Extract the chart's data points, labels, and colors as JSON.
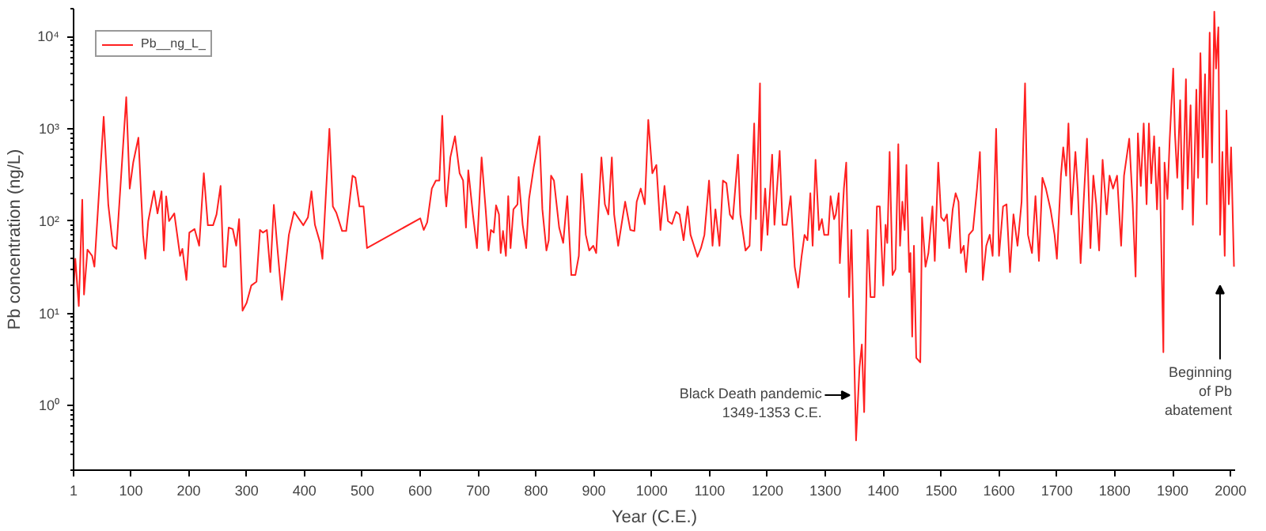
{
  "chart_data": {
    "type": "line",
    "xlabel": "Year (C.E.)",
    "ylabel": "Pb concentration (ng/L)",
    "log": "y",
    "grid": false,
    "legend": "top left",
    "marker": "none",
    "line_style": "solid",
    "xlim": [
      1,
      2008
    ],
    "xticks": [
      1,
      100,
      200,
      300,
      400,
      500,
      600,
      700,
      800,
      900,
      1000,
      1100,
      1200,
      1300,
      1400,
      1500,
      1600,
      1700,
      1800,
      1900,
      2000
    ],
    "ylim": [
      0.2,
      20000
    ],
    "yticks": [
      {
        "value": 1,
        "label": "10⁰"
      },
      {
        "value": 10,
        "label": "10¹"
      },
      {
        "value": 100,
        "label": "10²"
      },
      {
        "value": 1000,
        "label": "10³"
      },
      {
        "value": 10000,
        "label": "10⁴"
      }
    ],
    "annotations": [
      {
        "text": "Black Death pandemic\n1349-1353 C.E.",
        "x": 1344,
        "y": 1.3
      },
      "Beginning\nof Pb\nabatement"
    ],
    "series": [
      {
        "name": "Pb__ng_L_",
        "color": "#ff2020",
        "x": [
          1,
          4,
          10,
          16,
          19,
          25,
          33,
          37,
          53,
          61,
          69,
          75,
          92,
          98,
          104,
          113,
          121,
          125,
          130,
          140,
          146,
          153,
          157,
          161,
          166,
          175,
          185,
          189,
          196,
          201,
          210,
          218,
          226,
          233,
          242,
          248,
          255,
          260,
          264,
          269,
          276,
          282,
          287,
          293,
          300,
          308,
          317,
          323,
          328,
          335,
          341,
          347,
          352,
          361,
          373,
          382,
          398,
          406,
          412,
          418,
          427,
          431,
          443,
          449,
          455,
          465,
          472,
          483,
          488,
          495,
          502,
          508,
          600,
          606,
          612,
          620,
          627,
          633,
          638,
          643,
          645,
          652,
          660,
          668,
          674,
          679,
          683,
          691,
          698,
          706,
          713,
          718,
          722,
          727,
          731,
          736,
          739,
          743,
          748,
          752,
          756,
          761,
          768,
          770,
          777,
          783,
          788,
          796,
          806,
          811,
          818,
          822,
          826,
          831,
          840,
          847,
          854,
          861,
          868,
          874,
          879,
          886,
          892,
          899,
          904,
          913,
          919,
          925,
          931,
          935,
          942,
          954,
          963,
          970,
          974,
          981,
          988,
          994,
          1001,
          1008,
          1015,
          1022,
          1028,
          1035,
          1042,
          1048,
          1055,
          1062,
          1067,
          1073,
          1079,
          1085,
          1091,
          1099,
          1105,
          1110,
          1117,
          1123,
          1129,
          1135,
          1140,
          1149,
          1153,
          1162,
          1169,
          1177,
          1180,
          1187,
          1189,
          1196,
          1200,
          1208,
          1212,
          1221,
          1226,
          1233,
          1240,
          1247,
          1253,
          1259,
          1264,
          1269,
          1274,
          1278,
          1283,
          1289,
          1294,
          1298,
          1305,
          1309,
          1315,
          1318,
          1323,
          1325,
          1332,
          1336,
          1341,
          1345,
          1353,
          1359,
          1363,
          1367,
          1373,
          1378,
          1385,
          1389,
          1394,
          1400,
          1404,
          1407,
          1411,
          1416,
          1421,
          1426,
          1429,
          1433,
          1437,
          1440,
          1445,
          1447,
          1450,
          1453,
          1457,
          1464,
          1467,
          1473,
          1478,
          1485,
          1489,
          1495,
          1500,
          1505,
          1510,
          1514,
          1520,
          1525,
          1530,
          1534,
          1539,
          1543,
          1548,
          1555,
          1562,
          1567,
          1572,
          1578,
          1584,
          1589,
          1595,
          1600,
          1607,
          1613,
          1619,
          1625,
          1632,
          1639,
          1645,
          1650,
          1657,
          1663,
          1669,
          1675,
          1681,
          1689,
          1696,
          1700,
          1707,
          1711,
          1716,
          1720,
          1725,
          1732,
          1736,
          1741,
          1746,
          1752,
          1758,
          1763,
          1768,
          1773,
          1779,
          1786,
          1791,
          1797,
          1804,
          1811,
          1816,
          1825,
          1831,
          1836,
          1840,
          1845,
          1850,
          1855,
          1859,
          1863,
          1868,
          1873,
          1877,
          1884,
          1886,
          1891,
          1895,
          1901,
          1904,
          1908,
          1913,
          1917,
          1923,
          1926,
          1931,
          1935,
          1941,
          1944,
          1948,
          1952,
          1956,
          1959,
          1964,
          1968,
          1972,
          1975,
          1979,
          1982,
          1986,
          1990,
          1993,
          1997,
          2001,
          2006
        ],
        "values": [
          19,
          39,
          12,
          170,
          16,
          49,
          42,
          32,
          1350,
          150,
          54,
          50,
          2200,
          225,
          430,
          800,
          71,
          39,
          100,
          212,
          121,
          210,
          48,
          185,
          100,
          121,
          42,
          50,
          23,
          75,
          82,
          54,
          330,
          90,
          90,
          118,
          240,
          32,
          32,
          85,
          82,
          54,
          105,
          10.7,
          13,
          20,
          22,
          80,
          75,
          80,
          28,
          150,
          62,
          14,
          71,
          126,
          90,
          110,
          210,
          91,
          58,
          39,
          1000,
          144,
          123,
          78,
          78,
          310,
          295,
          144,
          144,
          51,
          107,
          80,
          97,
          225,
          275,
          275,
          1380,
          200,
          144,
          490,
          830,
          330,
          275,
          85,
          355,
          118,
          51,
          490,
          134,
          48,
          80,
          75,
          148,
          118,
          45,
          78,
          42,
          186,
          51,
          134,
          152,
          300,
          91,
          51,
          174,
          380,
          830,
          134,
          48,
          62,
          310,
          275,
          85,
          58,
          186,
          26,
          26,
          42,
          325,
          71,
          48,
          54,
          45,
          490,
          152,
          118,
          490,
          118,
          54,
          162,
          80,
          78,
          162,
          225,
          152,
          1250,
          330,
          405,
          80,
          240,
          100,
          93,
          126,
          118,
          62,
          144,
          71,
          54,
          41,
          51,
          71,
          275,
          54,
          134,
          54,
          275,
          257,
          118,
          105,
          525,
          118,
          48,
          54,
          1140,
          105,
          3100,
          48,
          225,
          71,
          525,
          91,
          575,
          91,
          91,
          186,
          32,
          19,
          42,
          71,
          62,
          200,
          54,
          460,
          80,
          105,
          71,
          71,
          186,
          105,
          118,
          200,
          35,
          225,
          430,
          15,
          80,
          0.42,
          2.6,
          4.6,
          0.85,
          80,
          15,
          15,
          144,
          144,
          20,
          91,
          58,
          560,
          26,
          30,
          680,
          54,
          162,
          80,
          405,
          28,
          45,
          5.6,
          54,
          3.3,
          2.95,
          110,
          32,
          45,
          144,
          37,
          430,
          110,
          100,
          118,
          51,
          134,
          200,
          162,
          45,
          54,
          28,
          71,
          80,
          225,
          560,
          23,
          54,
          71,
          42,
          1000,
          42,
          144,
          152,
          28,
          118,
          54,
          162,
          3100,
          71,
          45,
          186,
          37,
          295,
          225,
          134,
          71,
          39,
          310,
          630,
          310,
          1140,
          118,
          560,
          225,
          35,
          152,
          780,
          51,
          310,
          152,
          48,
          460,
          118,
          310,
          225,
          310,
          54,
          310,
          780,
          152,
          25,
          890,
          240,
          1140,
          152,
          1140,
          257,
          830,
          134,
          630,
          3.8,
          430,
          174,
          780,
          4500,
          890,
          295,
          2040,
          134,
          3450,
          225,
          1800,
          91,
          2650,
          295,
          6600,
          490,
          3900,
          152,
          11000,
          430,
          18600,
          4500,
          12600,
          71,
          560,
          42,
          1580,
          152,
          630,
          32
        ]
      }
    ]
  }
}
